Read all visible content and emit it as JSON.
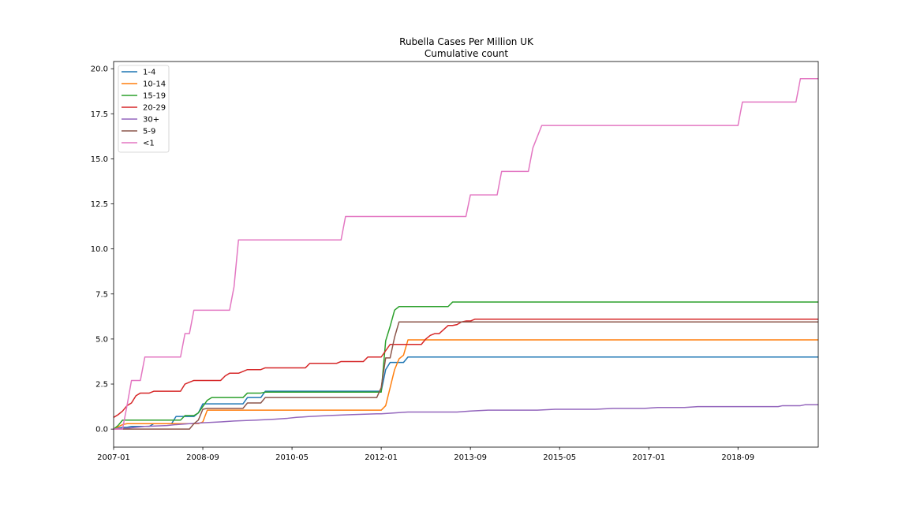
{
  "chart_data": {
    "type": "line",
    "title": "Rubella Cases Per Million UK",
    "subtitle": "Cumulative count",
    "xlabel": "",
    "ylabel": "",
    "x_ticks": [
      "2007-01",
      "2008-09",
      "2010-05",
      "2012-01",
      "2013-09",
      "2015-05",
      "2017-01",
      "2018-09"
    ],
    "xlim": [
      "2007-01",
      "2020-03"
    ],
    "ylim": [
      -1.0,
      20.4
    ],
    "y_ticks": [
      "0.0",
      "2.5",
      "5.0",
      "7.5",
      "10.0",
      "12.5",
      "15.0",
      "17.5",
      "20.0"
    ],
    "grid": false,
    "legend_position": "top-left",
    "series": [
      {
        "name": "1-4",
        "color": "#1f77b4",
        "points": [
          [
            "2007-01",
            0.0
          ],
          [
            "2007-03",
            0.1
          ],
          [
            "2007-04",
            0.1
          ],
          [
            "2007-05",
            0.15
          ],
          [
            "2007-06",
            0.15
          ],
          [
            "2007-07",
            0.15
          ],
          [
            "2007-08",
            0.15
          ],
          [
            "2007-09",
            0.15
          ],
          [
            "2007-10",
            0.3
          ],
          [
            "2007-12",
            0.3
          ],
          [
            "2008-02",
            0.3
          ],
          [
            "2008-03",
            0.7
          ],
          [
            "2008-04",
            0.7
          ],
          [
            "2008-05",
            0.7
          ],
          [
            "2008-06",
            0.7
          ],
          [
            "2008-07",
            0.7
          ],
          [
            "2008-08",
            0.9
          ],
          [
            "2008-09",
            1.4
          ],
          [
            "2008-10",
            1.4
          ],
          [
            "2009-06",
            1.4
          ],
          [
            "2009-07",
            1.75
          ],
          [
            "2009-10",
            1.75
          ],
          [
            "2009-11",
            2.1
          ],
          [
            "2012-01",
            2.1
          ],
          [
            "2012-02",
            3.3
          ],
          [
            "2012-03",
            3.7
          ],
          [
            "2012-06",
            3.7
          ],
          [
            "2012-07",
            4.0
          ],
          [
            "2020-03",
            4.0
          ]
        ]
      },
      {
        "name": "10-14",
        "color": "#ff7f0e",
        "points": [
          [
            "2007-01",
            0.0
          ],
          [
            "2007-03",
            0.25
          ],
          [
            "2007-04",
            0.3
          ],
          [
            "2008-07",
            0.3
          ],
          [
            "2008-08",
            0.3
          ],
          [
            "2008-09",
            0.4
          ],
          [
            "2008-10",
            1.05
          ],
          [
            "2012-01",
            1.05
          ],
          [
            "2012-02",
            1.3
          ],
          [
            "2012-03",
            2.3
          ],
          [
            "2012-04",
            3.3
          ],
          [
            "2012-05",
            3.9
          ],
          [
            "2012-06",
            4.1
          ],
          [
            "2012-07",
            4.95
          ],
          [
            "2020-03",
            4.95
          ]
        ]
      },
      {
        "name": "15-19",
        "color": "#2ca02c",
        "points": [
          [
            "2007-01",
            0.0
          ],
          [
            "2007-02",
            0.2
          ],
          [
            "2007-03",
            0.5
          ],
          [
            "2008-04",
            0.5
          ],
          [
            "2008-05",
            0.75
          ],
          [
            "2008-06",
            0.75
          ],
          [
            "2008-07",
            0.75
          ],
          [
            "2008-08",
            0.9
          ],
          [
            "2008-09",
            1.25
          ],
          [
            "2008-10",
            1.6
          ],
          [
            "2008-11",
            1.75
          ],
          [
            "2009-06",
            1.75
          ],
          [
            "2009-07",
            2.0
          ],
          [
            "2009-10",
            2.0
          ],
          [
            "2009-11",
            2.05
          ],
          [
            "2012-01",
            2.05
          ],
          [
            "2012-02",
            4.9
          ],
          [
            "2012-03",
            5.7
          ],
          [
            "2012-04",
            6.6
          ],
          [
            "2012-05",
            6.8
          ],
          [
            "2013-04",
            6.8
          ],
          [
            "2013-05",
            7.05
          ],
          [
            "2020-03",
            7.05
          ]
        ]
      },
      {
        "name": "20-29",
        "color": "#d62728",
        "points": [
          [
            "2007-01",
            0.65
          ],
          [
            "2007-02",
            0.8
          ],
          [
            "2007-03",
            1.0
          ],
          [
            "2007-04",
            1.3
          ],
          [
            "2007-05",
            1.45
          ],
          [
            "2007-06",
            1.85
          ],
          [
            "2007-07",
            2.0
          ],
          [
            "2007-09",
            2.0
          ],
          [
            "2007-10",
            2.1
          ],
          [
            "2008-04",
            2.1
          ],
          [
            "2008-05",
            2.5
          ],
          [
            "2008-06",
            2.6
          ],
          [
            "2008-07",
            2.7
          ],
          [
            "2009-01",
            2.7
          ],
          [
            "2009-02",
            2.95
          ],
          [
            "2009-03",
            3.1
          ],
          [
            "2009-05",
            3.1
          ],
          [
            "2009-06",
            3.2
          ],
          [
            "2009-07",
            3.3
          ],
          [
            "2009-10",
            3.3
          ],
          [
            "2009-11",
            3.4
          ],
          [
            "2010-08",
            3.4
          ],
          [
            "2010-09",
            3.65
          ],
          [
            "2011-03",
            3.65
          ],
          [
            "2011-04",
            3.75
          ],
          [
            "2011-09",
            3.75
          ],
          [
            "2011-10",
            4.0
          ],
          [
            "2012-01",
            4.0
          ],
          [
            "2012-02",
            4.35
          ],
          [
            "2012-03",
            4.7
          ],
          [
            "2012-10",
            4.7
          ],
          [
            "2012-11",
            5.0
          ],
          [
            "2012-12",
            5.2
          ],
          [
            "2013-01",
            5.3
          ],
          [
            "2013-02",
            5.3
          ],
          [
            "2013-04",
            5.75
          ],
          [
            "2013-05",
            5.75
          ],
          [
            "2013-06",
            5.8
          ],
          [
            "2013-07",
            5.95
          ],
          [
            "2013-08",
            6.0
          ],
          [
            "2013-09",
            6.0
          ],
          [
            "2013-10",
            6.1
          ],
          [
            "2020-03",
            6.1
          ]
        ]
      },
      {
        "name": "30+",
        "color": "#9467bd",
        "points": [
          [
            "2007-01",
            0.0
          ],
          [
            "2007-04",
            0.05
          ],
          [
            "2007-06",
            0.1
          ],
          [
            "2007-08",
            0.15
          ],
          [
            "2008-01",
            0.2
          ],
          [
            "2008-03",
            0.25
          ],
          [
            "2008-06",
            0.3
          ],
          [
            "2008-09",
            0.35
          ],
          [
            "2009-01",
            0.4
          ],
          [
            "2009-04",
            0.45
          ],
          [
            "2009-09",
            0.5
          ],
          [
            "2010-01",
            0.55
          ],
          [
            "2010-04",
            0.6
          ],
          [
            "2010-06",
            0.65
          ],
          [
            "2010-09",
            0.7
          ],
          [
            "2011-01",
            0.75
          ],
          [
            "2011-06",
            0.8
          ],
          [
            "2011-12",
            0.85
          ],
          [
            "2012-01",
            0.85
          ],
          [
            "2012-04",
            0.9
          ],
          [
            "2012-07",
            0.95
          ],
          [
            "2013-06",
            0.95
          ],
          [
            "2013-09",
            1.0
          ],
          [
            "2014-01",
            1.05
          ],
          [
            "2014-12",
            1.05
          ],
          [
            "2015-04",
            1.1
          ],
          [
            "2016-01",
            1.1
          ],
          [
            "2016-05",
            1.15
          ],
          [
            "2016-12",
            1.15
          ],
          [
            "2017-03",
            1.2
          ],
          [
            "2017-09",
            1.2
          ],
          [
            "2017-12",
            1.25
          ],
          [
            "2018-02",
            1.25
          ],
          [
            "2019-06",
            1.25
          ],
          [
            "2019-07",
            1.3
          ],
          [
            "2019-11",
            1.3
          ],
          [
            "2019-12",
            1.35
          ],
          [
            "2020-03",
            1.35
          ]
        ]
      },
      {
        "name": "5-9",
        "color": "#8c564b",
        "points": [
          [
            "2007-01",
            0.0
          ],
          [
            "2008-06",
            0.0
          ],
          [
            "2008-07",
            0.3
          ],
          [
            "2008-08",
            0.5
          ],
          [
            "2008-09",
            1.1
          ],
          [
            "2008-10",
            1.15
          ],
          [
            "2009-06",
            1.15
          ],
          [
            "2009-07",
            1.45
          ],
          [
            "2009-10",
            1.45
          ],
          [
            "2009-11",
            1.75
          ],
          [
            "2011-12",
            1.75
          ],
          [
            "2012-01",
            2.3
          ],
          [
            "2012-02",
            3.95
          ],
          [
            "2012-03",
            3.95
          ],
          [
            "2012-04",
            5.1
          ],
          [
            "2012-05",
            5.95
          ],
          [
            "2020-03",
            5.95
          ]
        ]
      },
      {
        "name": "<1",
        "color": "#e377c2",
        "points": [
          [
            "2007-01",
            0.0
          ],
          [
            "2007-03",
            0.0
          ],
          [
            "2007-04",
            1.3
          ],
          [
            "2007-05",
            2.7
          ],
          [
            "2007-07",
            2.7
          ],
          [
            "2007-08",
            4.0
          ],
          [
            "2008-02",
            4.0
          ],
          [
            "2008-04",
            4.0
          ],
          [
            "2008-05",
            5.3
          ],
          [
            "2008-06",
            5.3
          ],
          [
            "2008-07",
            6.6
          ],
          [
            "2009-03",
            6.6
          ],
          [
            "2009-04",
            7.9
          ],
          [
            "2009-05",
            10.5
          ],
          [
            "2011-04",
            10.5
          ],
          [
            "2011-05",
            11.8
          ],
          [
            "2013-07",
            11.8
          ],
          [
            "2013-08",
            11.8
          ],
          [
            "2013-09",
            13.0
          ],
          [
            "2014-03",
            13.0
          ],
          [
            "2014-04",
            14.3
          ],
          [
            "2014-10",
            14.3
          ],
          [
            "2014-11",
            15.6
          ],
          [
            "2015-01",
            16.85
          ],
          [
            "2018-09",
            16.85
          ],
          [
            "2018-10",
            18.15
          ],
          [
            "2019-10",
            18.15
          ],
          [
            "2019-11",
            19.45
          ],
          [
            "2020-03",
            19.45
          ]
        ]
      }
    ]
  }
}
